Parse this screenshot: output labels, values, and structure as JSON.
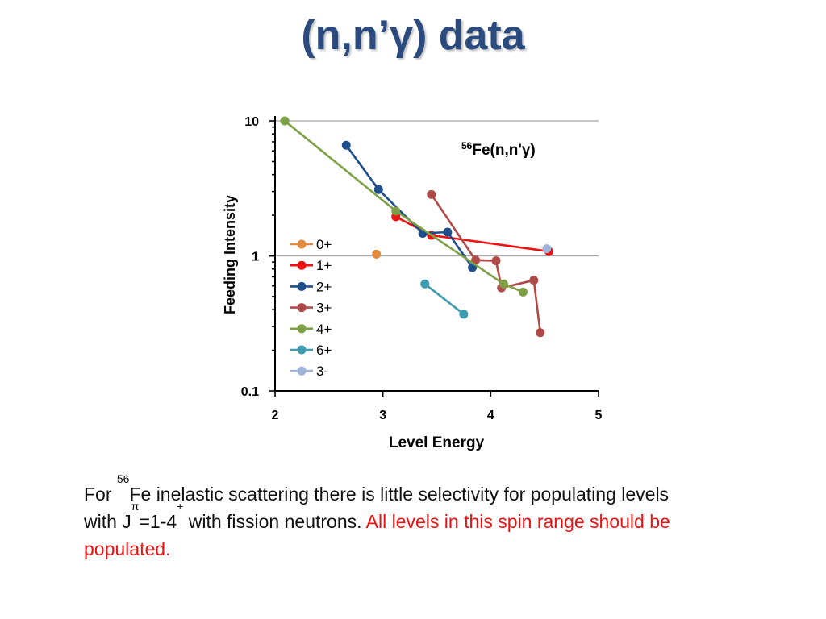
{
  "slide": {
    "title": "(n,n’γ) data"
  },
  "chart_data": {
    "type": "scatter-line",
    "annotation": "56Fe(n,n'γ)",
    "annotation_sup": "56",
    "annotation_text": "Fe(n,n'γ)",
    "xlabel": "Level Energy",
    "ylabel": "Feeding Intensity",
    "xlim": [
      2,
      5
    ],
    "ylim": [
      0.1,
      10
    ],
    "yscale": "log",
    "x_ticks": [
      "2",
      "3",
      "4",
      "5"
    ],
    "y_ticks": [
      "0.1",
      "1",
      "10"
    ],
    "grid": "major horizontal",
    "legend_position": "center-left",
    "series": [
      {
        "name": "0+",
        "color": "#e38b3d",
        "points": [
          [
            2.94,
            1.03
          ]
        ]
      },
      {
        "name": "1+",
        "color": "#ee1111",
        "points": [
          [
            3.12,
            1.95
          ],
          [
            3.45,
            1.42
          ],
          [
            4.54,
            1.08
          ]
        ]
      },
      {
        "name": "2+",
        "color": "#1f4e8c",
        "points": [
          [
            2.66,
            6.6
          ],
          [
            2.96,
            3.1
          ],
          [
            3.37,
            1.47
          ],
          [
            3.6,
            1.5
          ],
          [
            3.83,
            0.82
          ]
        ]
      },
      {
        "name": "3+",
        "color": "#b04a48",
        "points": [
          [
            3.45,
            2.85
          ],
          [
            3.86,
            0.93
          ],
          [
            4.05,
            0.92
          ],
          [
            4.1,
            0.58
          ],
          [
            4.4,
            0.66
          ],
          [
            4.46,
            0.27
          ]
        ]
      },
      {
        "name": "4+",
        "color": "#7ea044",
        "points": [
          [
            2.09,
            10.0
          ],
          [
            3.12,
            2.15
          ],
          [
            4.12,
            0.62
          ],
          [
            4.3,
            0.54
          ]
        ]
      },
      {
        "name": "6+",
        "color": "#3d9cb0",
        "points": [
          [
            3.39,
            0.62
          ],
          [
            3.75,
            0.37
          ]
        ]
      },
      {
        "name": "3-",
        "color": "#9db3d8",
        "points": [
          [
            4.52,
            1.13
          ]
        ]
      }
    ]
  },
  "caption": {
    "line1_pre": "For ",
    "line1_sup": "56",
    "line1_post": "Fe inelastic scattering there is little selectivity for populating levels",
    "line2_pre": "with J",
    "line2_sup_pi": "π",
    "line2_mid": "=1-4",
    "line2_sup_plus": "+",
    "line2_post": " with fission neutrons.  ",
    "red_part1": "All levels in this spin range should be",
    "red_part2": "populated."
  }
}
